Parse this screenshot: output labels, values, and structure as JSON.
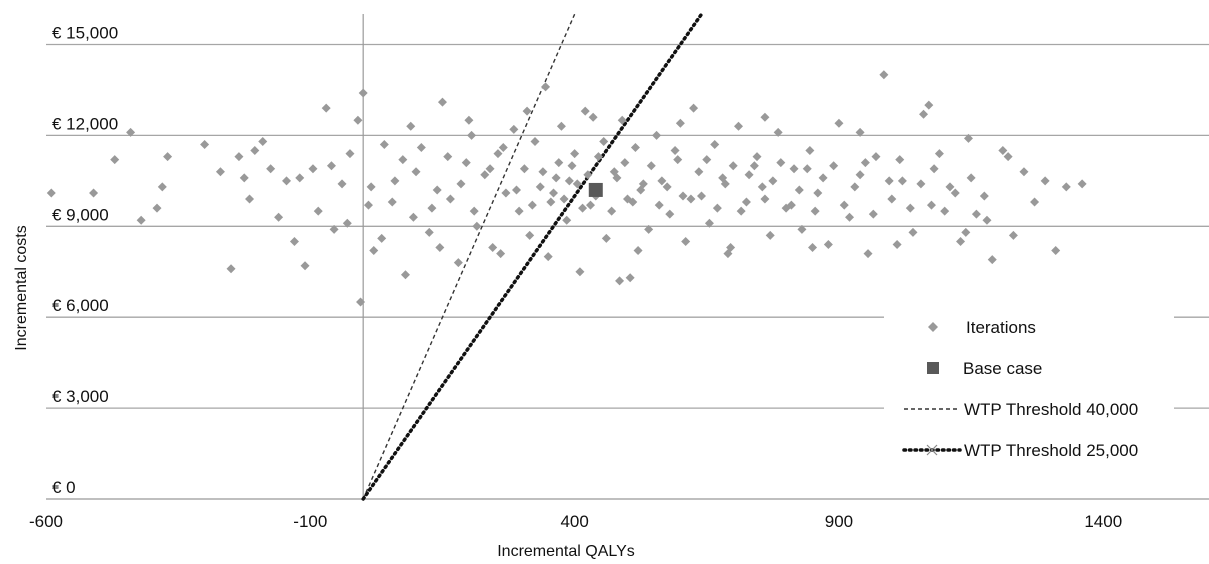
{
  "chart_data": {
    "type": "scatter",
    "title": "",
    "xlabel": "Incremental QALYs",
    "ylabel": "Incremental costs",
    "xlim": [
      -600,
      1600
    ],
    "ylim": [
      0,
      16000
    ],
    "x_ticks": [
      -600,
      -100,
      400,
      900,
      1400
    ],
    "x_tick_labels": [
      "-600",
      "-100",
      "400",
      "900",
      "1400"
    ],
    "y_ticks": [
      0,
      3000,
      6000,
      9000,
      12000,
      15000
    ],
    "y_tick_labels": [
      "€ 0",
      "€ 3,000",
      "€ 6,000",
      "€ 9,000",
      "€ 12,000",
      "€ 15,000"
    ],
    "grid": "horizontal",
    "legend_position": "right",
    "series": [
      {
        "name": "Iterations",
        "kind": "scatter",
        "marker": "diamond",
        "color": "#999999",
        "points": [
          [
            -590,
            10100
          ],
          [
            -510,
            10100
          ],
          [
            -470,
            11200
          ],
          [
            -440,
            12100
          ],
          [
            -420,
            9200
          ],
          [
            -390,
            9600
          ],
          [
            -380,
            10300
          ],
          [
            -370,
            11300
          ],
          [
            -300,
            11700
          ],
          [
            -270,
            10800
          ],
          [
            -250,
            7600
          ],
          [
            -235,
            11300
          ],
          [
            -225,
            10600
          ],
          [
            -215,
            9900
          ],
          [
            -205,
            11500
          ],
          [
            -190,
            11800
          ],
          [
            -175,
            10900
          ],
          [
            -160,
            9300
          ],
          [
            -145,
            10500
          ],
          [
            -130,
            8500
          ],
          [
            -110,
            7700
          ],
          [
            -95,
            10900
          ],
          [
            -85,
            9500
          ],
          [
            -70,
            12900
          ],
          [
            -55,
            8900
          ],
          [
            -40,
            10400
          ],
          [
            -25,
            11400
          ],
          [
            -10,
            12500
          ],
          [
            -5,
            6500
          ],
          [
            0,
            13400
          ],
          [
            10,
            9700
          ],
          [
            20,
            8200
          ],
          [
            40,
            11700
          ],
          [
            60,
            10500
          ],
          [
            80,
            7400
          ],
          [
            95,
            9300
          ],
          [
            110,
            11600
          ],
          [
            125,
            8800
          ],
          [
            140,
            10200
          ],
          [
            150,
            13100
          ],
          [
            165,
            9900
          ],
          [
            180,
            7800
          ],
          [
            195,
            11100
          ],
          [
            205,
            12000
          ],
          [
            215,
            9000
          ],
          [
            230,
            10700
          ],
          [
            245,
            8300
          ],
          [
            255,
            11400
          ],
          [
            270,
            10100
          ],
          [
            285,
            12200
          ],
          [
            295,
            9500
          ],
          [
            305,
            10900
          ],
          [
            315,
            8700
          ],
          [
            325,
            11800
          ],
          [
            335,
            10300
          ],
          [
            345,
            13600
          ],
          [
            355,
            9800
          ],
          [
            365,
            10600
          ],
          [
            375,
            12300
          ],
          [
            385,
            9200
          ],
          [
            395,
            11000
          ],
          [
            405,
            10400
          ],
          [
            410,
            7500
          ],
          [
            420,
            12800
          ],
          [
            430,
            9700
          ],
          [
            445,
            11300
          ],
          [
            460,
            8600
          ],
          [
            475,
            10800
          ],
          [
            485,
            7200
          ],
          [
            490,
            12500
          ],
          [
            500,
            9900
          ],
          [
            505,
            7300
          ],
          [
            515,
            11600
          ],
          [
            525,
            10200
          ],
          [
            540,
            8900
          ],
          [
            555,
            12000
          ],
          [
            565,
            10500
          ],
          [
            580,
            9400
          ],
          [
            595,
            11200
          ],
          [
            610,
            8500
          ],
          [
            625,
            12900
          ],
          [
            640,
            10000
          ],
          [
            655,
            9100
          ],
          [
            665,
            11700
          ],
          [
            680,
            10600
          ],
          [
            695,
            8300
          ],
          [
            710,
            12300
          ],
          [
            725,
            9800
          ],
          [
            740,
            11000
          ],
          [
            755,
            10300
          ],
          [
            770,
            8700
          ],
          [
            785,
            12100
          ],
          [
            800,
            9600
          ],
          [
            815,
            10900
          ],
          [
            830,
            8900
          ],
          [
            845,
            11500
          ],
          [
            860,
            10100
          ],
          [
            880,
            8400
          ],
          [
            900,
            12400
          ],
          [
            920,
            9300
          ],
          [
            940,
            10700
          ],
          [
            955,
            8100
          ],
          [
            970,
            11300
          ],
          [
            985,
            14000
          ],
          [
            1000,
            9900
          ],
          [
            1020,
            10500
          ],
          [
            1040,
            8800
          ],
          [
            1060,
            12700
          ],
          [
            1075,
            9700
          ],
          [
            1090,
            11400
          ],
          [
            1110,
            10300
          ],
          [
            1130,
            8500
          ],
          [
            1145,
            11900
          ],
          [
            1160,
            9400
          ],
          [
            1175,
            10000
          ],
          [
            1190,
            7900
          ],
          [
            1210,
            11500
          ],
          [
            1230,
            8700
          ],
          [
            1250,
            10800
          ],
          [
            1270,
            9800
          ],
          [
            1290,
            10500
          ],
          [
            1310,
            8200
          ],
          [
            1330,
            10300
          ],
          [
            1360,
            10400
          ],
          [
            -120,
            10600
          ],
          [
            -60,
            11000
          ],
          [
            15,
            10300
          ],
          [
            55,
            9800
          ],
          [
            75,
            11200
          ],
          [
            100,
            10800
          ],
          [
            130,
            9600
          ],
          [
            160,
            11300
          ],
          [
            185,
            10400
          ],
          [
            210,
            9500
          ],
          [
            240,
            10900
          ],
          [
            265,
            11600
          ],
          [
            290,
            10200
          ],
          [
            320,
            9700
          ],
          [
            340,
            10800
          ],
          [
            360,
            10100
          ],
          [
            370,
            11100
          ],
          [
            380,
            9900
          ],
          [
            390,
            10500
          ],
          [
            400,
            11400
          ],
          [
            415,
            9600
          ],
          [
            425,
            10700
          ],
          [
            440,
            10000
          ],
          [
            455,
            11800
          ],
          [
            470,
            9500
          ],
          [
            480,
            10600
          ],
          [
            495,
            11100
          ],
          [
            510,
            9800
          ],
          [
            530,
            10400
          ],
          [
            545,
            11000
          ],
          [
            560,
            9700
          ],
          [
            575,
            10300
          ],
          [
            590,
            11500
          ],
          [
            605,
            10000
          ],
          [
            620,
            9900
          ],
          [
            635,
            10800
          ],
          [
            650,
            11200
          ],
          [
            670,
            9600
          ],
          [
            685,
            10400
          ],
          [
            700,
            11000
          ],
          [
            715,
            9500
          ],
          [
            730,
            10700
          ],
          [
            745,
            11300
          ],
          [
            760,
            9900
          ],
          [
            775,
            10500
          ],
          [
            790,
            11100
          ],
          [
            810,
            9700
          ],
          [
            825,
            10200
          ],
          [
            840,
            10900
          ],
          [
            855,
            9500
          ],
          [
            870,
            10600
          ],
          [
            890,
            11000
          ],
          [
            910,
            9700
          ],
          [
            930,
            10300
          ],
          [
            950,
            11100
          ],
          [
            965,
            9400
          ],
          [
            995,
            10500
          ],
          [
            1015,
            11200
          ],
          [
            1035,
            9600
          ],
          [
            1055,
            10400
          ],
          [
            1080,
            10900
          ],
          [
            1100,
            9500
          ],
          [
            1120,
            10100
          ],
          [
            1150,
            10600
          ],
          [
            1180,
            9200
          ],
          [
            -30,
            9100
          ],
          [
            35,
            8600
          ],
          [
            90,
            12300
          ],
          [
            145,
            8300
          ],
          [
            200,
            12500
          ],
          [
            260,
            8100
          ],
          [
            310,
            12800
          ],
          [
            350,
            8000
          ],
          [
            435,
            12600
          ],
          [
            520,
            8200
          ],
          [
            600,
            12400
          ],
          [
            690,
            8100
          ],
          [
            760,
            12600
          ],
          [
            850,
            8300
          ],
          [
            940,
            12100
          ],
          [
            1010,
            8400
          ],
          [
            1070,
            13000
          ],
          [
            1140,
            8800
          ],
          [
            1220,
            11300
          ]
        ]
      },
      {
        "name": "Base case",
        "kind": "scatter",
        "marker": "square",
        "color": "#595959",
        "points": [
          [
            440,
            10200
          ]
        ]
      },
      {
        "name": "WTP Threshold 40,000",
        "kind": "line",
        "style": "dashed",
        "color": "#333333",
        "points": [
          [
            0,
            0
          ],
          [
            400,
            16000
          ]
        ]
      },
      {
        "name": "WTP Threshold 25,000",
        "kind": "line",
        "style": "dotted",
        "color": "#111111",
        "points": [
          [
            0,
            0
          ],
          [
            640,
            16000
          ]
        ]
      }
    ]
  }
}
